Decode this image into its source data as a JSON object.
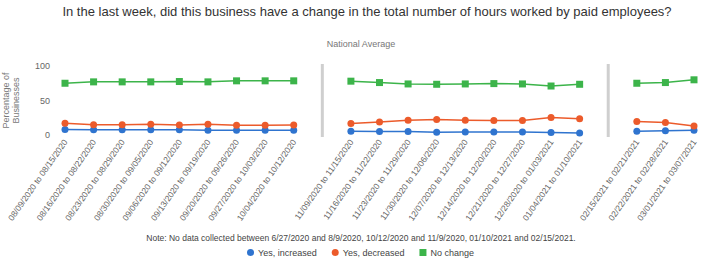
{
  "chart_data": {
    "type": "line",
    "title": "In the last week, did this business have a change in the total number of hours worked by paid employees?",
    "subtitle": "National Average",
    "ylabel": "Percentage of Businesses",
    "note": "Note: No data collected between 6/27/2020 and 8/9/2020, 10/12/2020 and 11/9/2020, 01/10/2021 and 02/15/2021.",
    "categories": [
      "08/09/2020 to 08/15/2020",
      "08/16/2020 to 08/22/2020",
      "08/23/2020 to 08/29/2020",
      "08/30/2020 to 09/05/2020",
      "09/06/2020 to 09/12/2020",
      "09/13/2020 to 09/19/2020",
      "09/20/2020 to 09/26/2020",
      "09/27/2020 to 10/03/2020",
      "10/04/2020 to 10/12/2020",
      null,
      "11/09/2020 to 11/15/2020",
      "11/16/2020 to 11/22/2020",
      "11/23/2020 to 11/29/2020",
      "11/30/2020 to 12/06/2020",
      "12/07/2020 to 12/13/2020",
      "12/14/2020 to 12/20/2020",
      "12/21/2020 to 12/27/2020",
      "12/28/2020 to 01/03/2021",
      "01/04/2021 to 01/10/2021",
      null,
      "02/15/2021 to 02/21/2021",
      "02/22/2021 to 02/28/2021",
      "03/01/2021 to 03/07/2021"
    ],
    "series": [
      {
        "name": "Yes, increased",
        "color": "#2f74cf",
        "marker": "circle",
        "values": [
          8,
          7.5,
          7.5,
          7.5,
          7.5,
          7,
          7,
          7,
          7,
          null,
          5.5,
          5,
          5,
          4,
          4.5,
          4.5,
          4.5,
          3.5,
          3,
          null,
          5.5,
          6,
          7
        ]
      },
      {
        "name": "Yes, decreased",
        "color": "#ec5b2b",
        "marker": "circle",
        "values": [
          17,
          15,
          15,
          15.5,
          14.5,
          15.5,
          14,
          14,
          14.5,
          null,
          16.5,
          19,
          21.5,
          22.5,
          21.5,
          21,
          21,
          25.5,
          23.5,
          null,
          19.5,
          18,
          13
        ]
      },
      {
        "name": "No change",
        "color": "#3cb44a",
        "marker": "square",
        "values": [
          75,
          77,
          77,
          77,
          77.5,
          77,
          78.5,
          78.5,
          78.5,
          null,
          78,
          76,
          74,
          73.5,
          74,
          74.5,
          74,
          71,
          73.5,
          null,
          75,
          76,
          80
        ]
      }
    ],
    "ylim": [
      0,
      100
    ],
    "yticks": [
      0,
      50,
      100
    ],
    "grid": false,
    "legend": "bottom"
  }
}
